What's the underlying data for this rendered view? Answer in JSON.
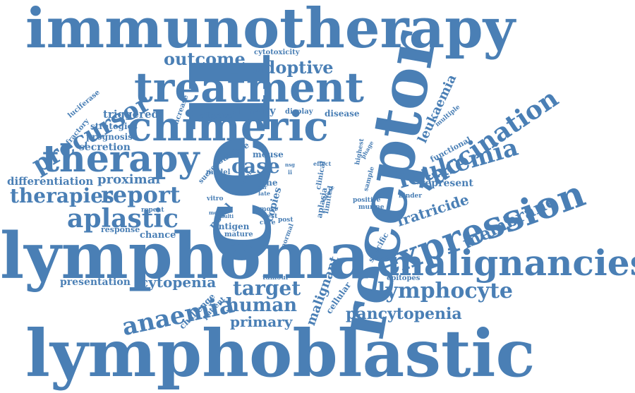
{
  "colors": {
    "word": "#4a7fb5",
    "background": "#ffffff"
  },
  "words": [
    {
      "id": "immunotherapy",
      "text": "immunotherapy"
    },
    {
      "id": "receptor",
      "text": "receptor"
    },
    {
      "id": "cell",
      "text": "cell"
    },
    {
      "id": "lymphoma",
      "text": "lymphoma"
    },
    {
      "id": "lymphoblastic",
      "text": "lymphoblastic"
    },
    {
      "id": "treatment",
      "text": "treatment"
    },
    {
      "id": "chimeric",
      "text": "chimeric"
    },
    {
      "id": "therapy",
      "text": "therapy"
    },
    {
      "id": "expression",
      "text": "expression"
    },
    {
      "id": "malignancies",
      "text": "malignancies"
    },
    {
      "id": "vaccination",
      "text": "vaccination"
    },
    {
      "id": "leukemia",
      "text": "leukemia"
    },
    {
      "id": "precursor",
      "text": "precursor"
    },
    {
      "id": "anaemia",
      "text": "anaemia"
    },
    {
      "id": "target",
      "text": "target"
    },
    {
      "id": "lymphocyte",
      "text": "lymphocyte"
    },
    {
      "id": "aplastic",
      "text": "aplastic"
    },
    {
      "id": "report",
      "text": "report"
    },
    {
      "id": "therapies",
      "text": "therapies"
    },
    {
      "id": "outcome",
      "text": "outcome"
    },
    {
      "id": "adoptive",
      "text": "adoptive"
    },
    {
      "id": "case",
      "text": "case"
    },
    {
      "id": "human",
      "text": "human"
    },
    {
      "id": "primary",
      "text": "primary"
    },
    {
      "id": "pancytopenia",
      "text": "pancytopenia"
    },
    {
      "id": "membrane",
      "text": "membrane"
    },
    {
      "id": "fratricide",
      "text": "fratricide"
    },
    {
      "id": "leukaemia",
      "text": "leukaemia"
    },
    {
      "id": "cytopenia",
      "text": "cytopenia"
    },
    {
      "id": "proximal",
      "text": "proximal"
    },
    {
      "id": "differentiation",
      "text": "differentiation"
    },
    {
      "id": "density",
      "text": "density"
    },
    {
      "id": "triggered",
      "text": "triggered"
    },
    {
      "id": "strategies",
      "text": "strategies"
    },
    {
      "id": "prognosis",
      "text": "prognosis"
    },
    {
      "id": "secretion",
      "text": "secretion"
    },
    {
      "id": "presentation",
      "text": "presentation"
    },
    {
      "id": "chance",
      "text": "chance"
    },
    {
      "id": "response",
      "text": "response"
    },
    {
      "id": "represent",
      "text": "represent"
    },
    {
      "id": "malignant",
      "text": "malignant"
    },
    {
      "id": "cellular",
      "text": "cellular"
    },
    {
      "id": "epitopes",
      "text": "epitopes"
    },
    {
      "id": "disease",
      "text": "disease"
    },
    {
      "id": "cytotoxicity",
      "text": "cytotoxicity"
    },
    {
      "id": "luciferase",
      "text": "luciferase"
    },
    {
      "id": "refractory",
      "text": "refractory"
    },
    {
      "id": "increase",
      "text": "increase"
    },
    {
      "id": "effective",
      "text": "effective"
    },
    {
      "id": "display",
      "text": "display"
    },
    {
      "id": "mouse",
      "text": "mouse"
    },
    {
      "id": "surface",
      "text": "surface"
    },
    {
      "id": "success",
      "text": "success"
    },
    {
      "id": "model",
      "text": "model"
    },
    {
      "id": "vitro",
      "text": "vitro"
    },
    {
      "id": "line",
      "text": "line"
    },
    {
      "id": "copies",
      "text": "copies"
    },
    {
      "id": "novel",
      "text": "novel"
    },
    {
      "id": "antigen",
      "text": "antigen"
    },
    {
      "id": "most",
      "text": "most"
    },
    {
      "id": "best",
      "text": "best"
    },
    {
      "id": "cure",
      "text": "cure"
    },
    {
      "id": "post",
      "text": "post"
    },
    {
      "id": "mature",
      "text": "mature"
    },
    {
      "id": "severe",
      "text": "severe"
    },
    {
      "id": "late",
      "text": "late"
    },
    {
      "id": "car",
      "text": "car"
    },
    {
      "id": "more",
      "text": "more"
    },
    {
      "id": "multi",
      "text": "multi"
    },
    {
      "id": "repeat",
      "text": "repeat"
    },
    {
      "id": "challenge",
      "text": "challenge"
    },
    {
      "id": "patient",
      "text": "patient"
    },
    {
      "id": "tumour",
      "text": "tumour"
    },
    {
      "id": "normal",
      "text": "normal"
    },
    {
      "id": "aplasia",
      "text": "aplasia"
    },
    {
      "id": "limited",
      "text": "limited"
    },
    {
      "id": "clinical",
      "text": "clinical"
    },
    {
      "id": "cause",
      "text": "cause"
    },
    {
      "id": "specific",
      "text": "specific"
    },
    {
      "id": "sample",
      "text": "sample"
    },
    {
      "id": "highest",
      "text": "highest"
    },
    {
      "id": "phage",
      "text": "phage"
    },
    {
      "id": "positive",
      "text": "positive"
    },
    {
      "id": "murine",
      "text": "murine"
    },
    {
      "id": "binder",
      "text": "binder"
    },
    {
      "id": "functional",
      "text": "functional"
    },
    {
      "id": "multiple",
      "text": "multiple"
    },
    {
      "id": "effect",
      "text": "effect"
    },
    {
      "id": "ii",
      "text": "ii"
    },
    {
      "id": "nsg",
      "text": "nsg"
    }
  ]
}
